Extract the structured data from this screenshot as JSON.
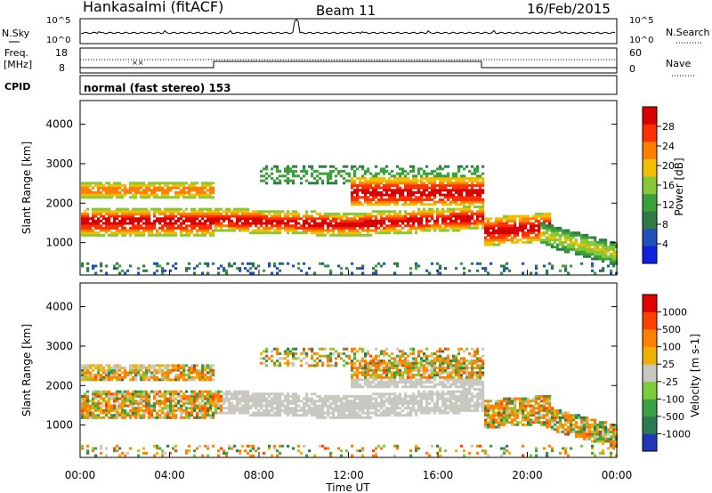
{
  "header": {
    "station": "Hankasalmi (fitACF)",
    "beam": "Beam 11",
    "date": "16/Feb/2015"
  },
  "top_panels": {
    "nsky_label": "N.Sky",
    "nsearch_label": "N.Search",
    "noise_tick_top": "10^5",
    "noise_tick_bottom": "10^0",
    "freq_label": "Freq.",
    "freq_unit": "[MHz]",
    "freq_tick_top": "18",
    "freq_tick_bottom": "8",
    "nave_label": "Nave",
    "nave_tick_top": "60",
    "nave_tick_bottom": "0",
    "cpid_label": "CPID",
    "cpid_value": "normal (fast stereo) 153"
  },
  "chart_data": [
    {
      "type": "heatmap",
      "panel": "power",
      "ylabel": "Slant Range [km]",
      "yticks": [
        1000,
        2000,
        3000,
        4000
      ],
      "ylim": [
        180,
        4600
      ],
      "colorbar_label": "Power [dB]",
      "colorbar_ticks": [
        "28",
        "24",
        "20",
        "16",
        "12",
        "8",
        "4"
      ],
      "colorbar_range": [
        0,
        32
      ],
      "colorbar_colors": [
        "#1020e0",
        "#2050b8",
        "#2f7a46",
        "#3aa03a",
        "#88c838",
        "#f0c000",
        "#ff8000",
        "#ff3000",
        "#d80000"
      ],
      "x_range_hours": [
        0,
        24
      ]
    },
    {
      "type": "heatmap",
      "panel": "velocity",
      "ylabel": "Slant Range [km]",
      "yticks": [
        1000,
        2000,
        3000,
        4000
      ],
      "ylim": [
        180,
        4600
      ],
      "colorbar_label": "Velocity  [m s-1]",
      "colorbar_ticks": [
        "1000",
        "500",
        "100",
        "25",
        "-25",
        "-100",
        "-500",
        "-1000"
      ],
      "colorbar_colors": [
        "#2038b8",
        "#2a7a52",
        "#3aa046",
        "#7ccc3c",
        "#c8c8c0",
        "#f0b000",
        "#ff8000",
        "#ff4000",
        "#e00000"
      ],
      "x_range_hours": [
        0,
        24
      ]
    }
  ],
  "x_axis": {
    "ticks": [
      "00:00",
      "04:00",
      "08:00",
      "12:00",
      "16:00",
      "20:00",
      "00:00"
    ],
    "label": "Time UT"
  }
}
